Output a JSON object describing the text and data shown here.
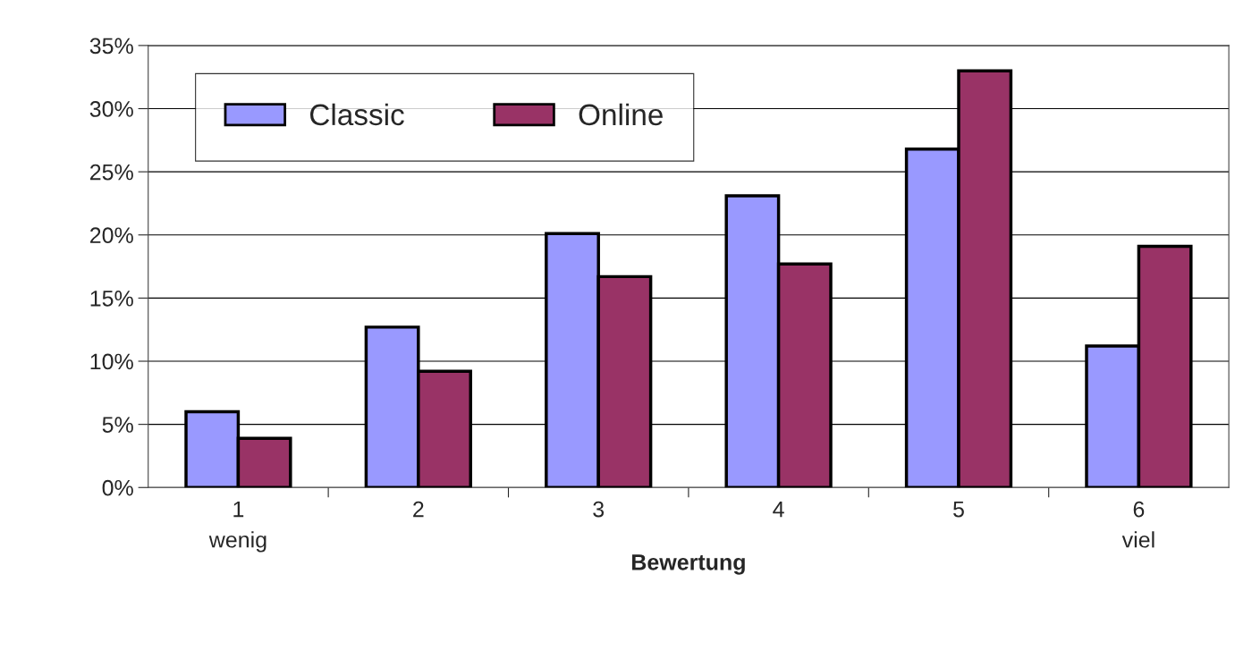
{
  "chart_data": {
    "type": "bar",
    "xlabel": "Bewertung",
    "categories": [
      "1\nwenig",
      "2",
      "3",
      "4",
      "5",
      "6\nviel"
    ],
    "series": [
      {
        "name": "Classic",
        "color": "#9999ff",
        "values": [
          6.0,
          12.7,
          20.1,
          23.1,
          26.8,
          11.2
        ]
      },
      {
        "name": "Online",
        "color": "#993366",
        "values": [
          3.9,
          9.2,
          16.7,
          17.7,
          33.0,
          19.1
        ]
      }
    ],
    "ylim": [
      0,
      35
    ],
    "yticks": [
      {
        "value": 0,
        "label": "0%"
      },
      {
        "value": 5,
        "label": "5%"
      },
      {
        "value": 10,
        "label": "10%"
      },
      {
        "value": 15,
        "label": "15%"
      },
      {
        "value": 20,
        "label": "20%"
      },
      {
        "value": 25,
        "label": "25%"
      },
      {
        "value": 30,
        "label": "30%"
      },
      {
        "value": 35,
        "label": "35%"
      }
    ],
    "grid": "y",
    "legend": "top left"
  }
}
